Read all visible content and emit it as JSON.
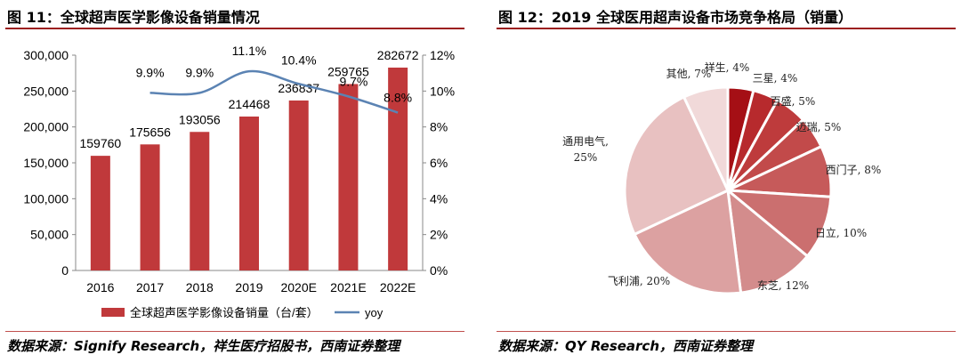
{
  "figure_left": {
    "title": "图 11：全球超声医学影像设备销量情况",
    "source": "数据来源：Signify Research，祥生医疗招股书，西南证券整理"
  },
  "figure_right": {
    "title": "图 12：2019 全球医用超声设备市场竞争格局（销量）",
    "source": "数据来源：QY Research，西南证券整理"
  },
  "chart_data": [
    {
      "type": "bar",
      "title": "全球超声医学影像设备销量情况",
      "categories": [
        "2016",
        "2017",
        "2018",
        "2019",
        "2020E",
        "2021E",
        "2022E"
      ],
      "series": [
        {
          "name": "全球超声医学影像设备销量（台/套）",
          "type": "bar",
          "axis": "left",
          "color": "#c0393b",
          "values": [
            159760,
            175656,
            193056,
            214468,
            236837,
            259765,
            282672
          ],
          "labels": [
            "159760",
            "175656",
            "193056",
            "214468",
            "236837",
            "259765",
            "282672"
          ]
        },
        {
          "name": "yoy",
          "type": "line",
          "axis": "right",
          "color": "#5b83b3",
          "values": [
            null,
            9.9,
            9.9,
            11.1,
            10.4,
            9.7,
            8.8
          ],
          "labels": [
            "",
            "9.9%",
            "9.9%",
            "11.1%",
            "10.4%",
            "9.7%",
            "8.8%"
          ]
        }
      ],
      "y_left": {
        "min": 0,
        "max": 300000,
        "ticks": [
          "0",
          "50,000",
          "100,000",
          "150,000",
          "200,000",
          "250,000",
          "300,000"
        ]
      },
      "y_right": {
        "min": 0,
        "max": 12,
        "ticks": [
          "0%",
          "2%",
          "4%",
          "6%",
          "8%",
          "10%",
          "12%"
        ]
      },
      "legend_position": "bottom"
    },
    {
      "type": "pie",
      "title": "2019 全球医用超声设备市场竞争格局（销量）",
      "slices": [
        {
          "label": "祥生",
          "value": 4,
          "display": "祥生, 4%",
          "color": "#a50f15"
        },
        {
          "label": "三星",
          "value": 4,
          "display": "三星, 4%",
          "color": "#b72a2d"
        },
        {
          "label": "百盛",
          "value": 5,
          "display": "百盛, 5%",
          "color": "#be3b3c"
        },
        {
          "label": "迈瑞",
          "value": 5,
          "display": "迈瑞, 5%",
          "color": "#c24a4a"
        },
        {
          "label": "西门子",
          "value": 8,
          "display": "西门子, 8%",
          "color": "#c65a5a"
        },
        {
          "label": "日立",
          "value": 10,
          "display": "日立, 10%",
          "color": "#cb6f6f"
        },
        {
          "label": "东芝",
          "value": 12,
          "display": "东芝, 12%",
          "color": "#d38c8c"
        },
        {
          "label": "飞利浦",
          "value": 20,
          "display": "飞利浦, 20%",
          "color": "#dca1a1"
        },
        {
          "label": "通用电气",
          "value": 25,
          "display": [
            "通用电气,",
            "25%"
          ],
          "color": "#e8c1c1"
        },
        {
          "label": "其他",
          "value": 7,
          "display": "其他, 7%",
          "color": "#f1d9d9"
        }
      ]
    }
  ]
}
